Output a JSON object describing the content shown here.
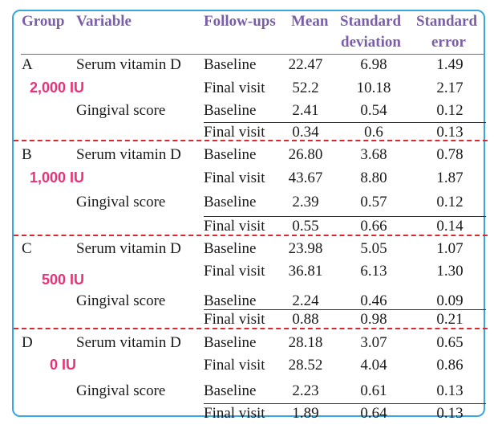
{
  "columns": [
    "Group",
    "Variable",
    "Follow-ups",
    "Mean",
    "Standard",
    "deviation",
    "Standard",
    "error"
  ],
  "groups": [
    {
      "label": "A",
      "dose": "2,000 IU",
      "rows": [
        {
          "variable": "Serum vitamin D",
          "followup": "Baseline",
          "mean": "22.47",
          "sd": "6.98",
          "se": "1.49"
        },
        {
          "variable": "",
          "followup": "Final visit",
          "mean": "52.2",
          "sd": "10.18",
          "se": "2.17"
        },
        {
          "variable": "Gingival score",
          "followup": "Baseline",
          "mean": "2.41",
          "sd": "0.54",
          "se": "0.12"
        },
        {
          "variable": "",
          "followup": "Final visit",
          "mean": "0.34",
          "sd": "0.6",
          "se": "0.13"
        }
      ]
    },
    {
      "label": "B",
      "dose": "1,000 IU",
      "rows": [
        {
          "variable": "Serum vitamin D",
          "followup": "Baseline",
          "mean": "26.80",
          "sd": "3.68",
          "se": "0.78"
        },
        {
          "variable": "",
          "followup": "Final visit",
          "mean": "43.67",
          "sd": "8.80",
          "se": "1.87"
        },
        {
          "variable": "Gingival score",
          "followup": "Baseline",
          "mean": "2.39",
          "sd": "0.57",
          "se": "0.12"
        },
        {
          "variable": "",
          "followup": "Final visit",
          "mean": "0.55",
          "sd": "0.66",
          "se": "0.14"
        }
      ]
    },
    {
      "label": "C",
      "dose": "500 IU",
      "rows": [
        {
          "variable": "Serum vitamin D",
          "followup": "Baseline",
          "mean": "23.98",
          "sd": "5.05",
          "se": "1.07"
        },
        {
          "variable": "",
          "followup": "Final visit",
          "mean": "36.81",
          "sd": "6.13",
          "se": "1.30"
        },
        {
          "variable": "Gingival score",
          "followup": "Baseline",
          "mean": "2.24",
          "sd": "0.46",
          "se": "0.09"
        },
        {
          "variable": "",
          "followup": "Final visit",
          "mean": "0.88",
          "sd": "0.98",
          "se": "0.21"
        }
      ]
    },
    {
      "label": "D",
      "dose": "0 IU",
      "rows": [
        {
          "variable": "Serum vitamin D",
          "followup": "Baseline",
          "mean": "28.18",
          "sd": "3.07",
          "se": "0.65"
        },
        {
          "variable": "",
          "followup": "Final visit",
          "mean": "28.52",
          "sd": "4.04",
          "se": "0.86"
        },
        {
          "variable": "Gingival score",
          "followup": "Baseline",
          "mean": "2.23",
          "sd": "0.61",
          "se": "0.13"
        },
        {
          "variable": "",
          "followup": "Final visit",
          "mean": "1.89",
          "sd": "0.64",
          "se": "0.13"
        }
      ]
    }
  ]
}
